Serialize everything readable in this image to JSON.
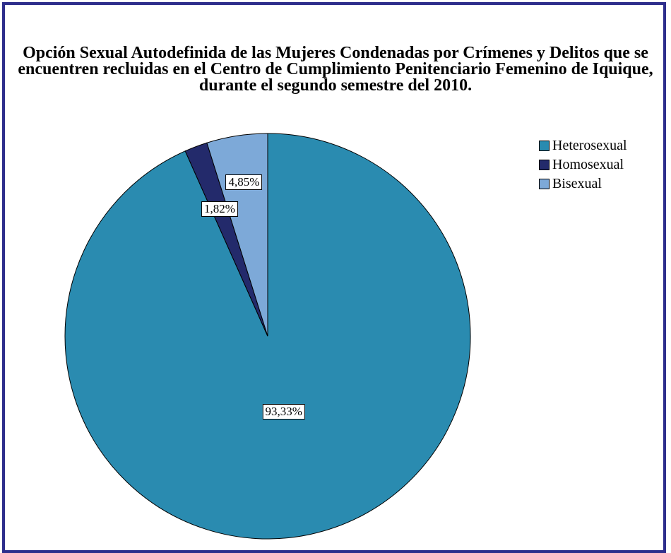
{
  "chart_data": {
    "type": "pie",
    "title": "Opción Sexual Autodefinida de las Mujeres Condenadas por Crímenes y Delitos que se encuentren recluidas en el Centro de Cumplimiento Penitenciario Femenino de Iquique, durante el segundo semestre del 2010.",
    "legend_position": "top-right",
    "slices": [
      {
        "label": "Heterosexual",
        "value": 93.33,
        "display": "93,33%",
        "color": "#2A8BB0"
      },
      {
        "label": "Homosexual",
        "value": 1.82,
        "display": "1,82%",
        "color": "#232A6B"
      },
      {
        "label": "Bisexual",
        "value": 4.85,
        "display": "4,85%",
        "color": "#7DA9D8"
      }
    ]
  },
  "colors": {
    "frame_border": "#2E2E8C",
    "slice_outline": "#000000"
  }
}
